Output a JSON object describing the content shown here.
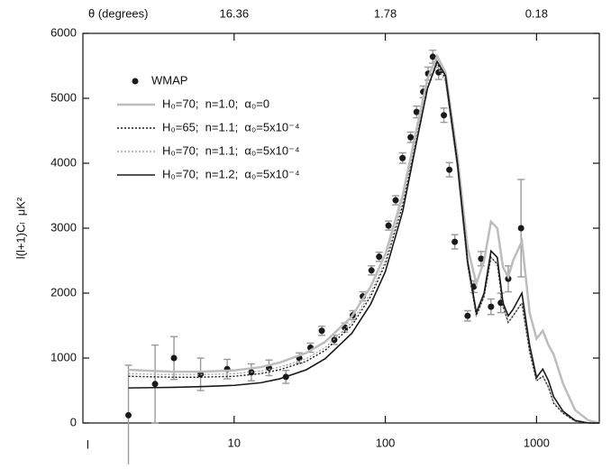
{
  "chart_data": {
    "type": "line",
    "x_label": "l",
    "y_label": "l(l+1)Cₗ  μK²",
    "x2_label": "θ (degrees)",
    "log_x": true,
    "xlim": [
      1,
      2600
    ],
    "ylim": [
      0,
      6000
    ],
    "xticks": [
      10,
      100,
      1000
    ],
    "x2ticks": [
      {
        "value": 10,
        "label": "16.36"
      },
      {
        "value": 100,
        "label": "1.78"
      },
      {
        "value": 1000,
        "label": "0.18"
      }
    ],
    "yticks": [
      0,
      1000,
      2000,
      3000,
      4000,
      5000,
      6000
    ],
    "legend": "upper left",
    "x": [
      2,
      3,
      4,
      6,
      10,
      15,
      20,
      30,
      40,
      60,
      80,
      100,
      130,
      160,
      190,
      220,
      250,
      300,
      350,
      400,
      450,
      500,
      550,
      600,
      650,
      700,
      800,
      900,
      1000,
      1100,
      1200,
      1300,
      1500,
      1800,
      2200,
      2600
    ],
    "series": [
      {
        "name": "WMAP",
        "style": "points",
        "color": "#1a1a1a",
        "error_color": "#999999",
        "x": [
          2,
          3,
          4,
          6,
          9,
          13,
          17,
          22,
          27,
          32,
          38,
          46,
          54,
          61,
          71,
          81,
          91,
          105,
          117,
          130,
          147,
          161,
          178,
          192,
          206,
          225,
          244,
          265,
          288,
          350,
          385,
          430,
          500,
          580,
          650,
          790
        ],
        "values": [
          120,
          600,
          1000,
          750,
          830,
          780,
          850,
          710,
          1000,
          1160,
          1420,
          1280,
          1470,
          1660,
          1950,
          2350,
          2560,
          3040,
          3430,
          4080,
          4400,
          4790,
          5100,
          5380,
          5640,
          5400,
          4740,
          3900,
          2790,
          1650,
          2100,
          2530,
          1790,
          1850,
          2220,
          3000
        ],
        "errors": [
          770,
          600,
          330,
          250,
          150,
          130,
          120,
          100,
          80,
          70,
          70,
          70,
          70,
          70,
          70,
          70,
          70,
          70,
          70,
          80,
          80,
          90,
          90,
          100,
          100,
          110,
          110,
          110,
          110,
          80,
          90,
          110,
          120,
          150,
          200,
          750
        ]
      },
      {
        "name": "H₀=70;  n=1.0;  α₀=0",
        "style": "solid",
        "width": 2.5,
        "color": "#bdbdbd",
        "values": [
          820,
          800,
          790,
          790,
          810,
          860,
          930,
          1080,
          1250,
          1640,
          2100,
          2600,
          3500,
          4500,
          5300,
          5650,
          5400,
          4100,
          2700,
          2150,
          2500,
          3100,
          3000,
          2400,
          2250,
          2500,
          2800,
          1700,
          1300,
          1420,
          1200,
          1050,
          600,
          200,
          40,
          0
        ]
      },
      {
        "name": "H₀=65;  n=1.1;  α₀=5x10⁻⁴",
        "style": "dotted",
        "width": 1.4,
        "color": "#1a1a1a",
        "values": [
          720,
          710,
          705,
          705,
          720,
          760,
          820,
          950,
          1120,
          1500,
          1950,
          2450,
          3350,
          4350,
          5150,
          5550,
          5300,
          3950,
          2450,
          1650,
          1950,
          2550,
          2450,
          1800,
          1550,
          1650,
          1850,
          1100,
          650,
          720,
          550,
          300,
          150,
          30,
          0,
          0
        ]
      },
      {
        "name": "H₀=70;  n=1.1;  α₀=5x10⁻⁴",
        "style": "dotted",
        "width": 1.4,
        "color": "#a8a8a8",
        "values": [
          760,
          750,
          745,
          745,
          760,
          800,
          860,
          990,
          1160,
          1550,
          2000,
          2500,
          3400,
          4400,
          5200,
          5500,
          5250,
          3900,
          2400,
          1650,
          1950,
          2550,
          2450,
          1800,
          1550,
          1650,
          1850,
          1100,
          650,
          720,
          550,
          320,
          150,
          30,
          0,
          0
        ]
      },
      {
        "name": "H₀=70;  n=1.2;  α₀=5x10⁻⁴",
        "style": "solid",
        "width": 1.6,
        "color": "#1a1a1a",
        "values": [
          540,
          545,
          550,
          560,
          580,
          620,
          680,
          820,
          990,
          1380,
          1830,
          2330,
          3250,
          4300,
          5150,
          5570,
          5350,
          4000,
          2500,
          1700,
          2000,
          2650,
          2550,
          1850,
          1650,
          1750,
          2000,
          1200,
          700,
          830,
          650,
          400,
          180,
          40,
          0,
          0
        ]
      }
    ]
  }
}
